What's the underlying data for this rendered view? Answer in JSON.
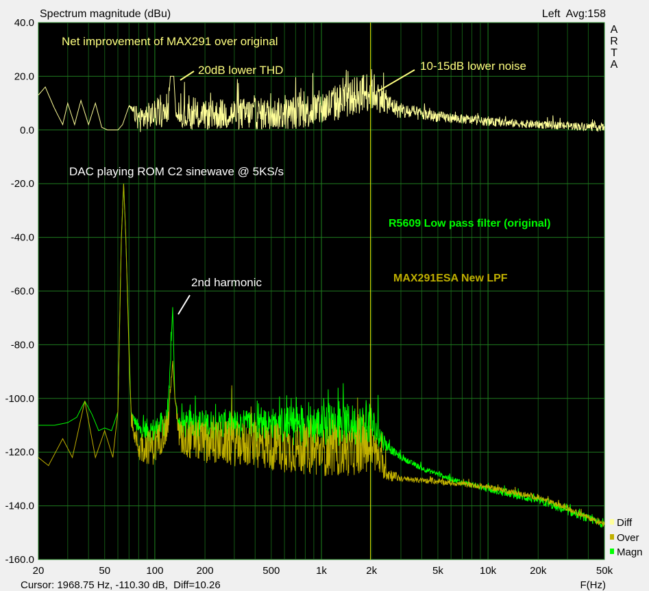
{
  "chart_data": {
    "type": "line",
    "title": "Spectrum magnitude (dBu)",
    "channel_info": "Left  Avg:158",
    "brand": [
      "A",
      "R",
      "T",
      "A"
    ],
    "xlabel": "F(Hz)",
    "xscale": "log",
    "xlim": [
      20,
      50000
    ],
    "ylim": [
      -160,
      40
    ],
    "grid": true,
    "x_ticks": [
      {
        "v": 20,
        "label": "20"
      },
      {
        "v": 50,
        "label": "50"
      },
      {
        "v": 100,
        "label": "100"
      },
      {
        "v": 200,
        "label": "200"
      },
      {
        "v": 500,
        "label": "500"
      },
      {
        "v": 1000,
        "label": "1k"
      },
      {
        "v": 2000,
        "label": "2k"
      },
      {
        "v": 5000,
        "label": "5k"
      },
      {
        "v": 10000,
        "label": "10k"
      },
      {
        "v": 20000,
        "label": "20k"
      },
      {
        "v": 50000,
        "label": "50k"
      }
    ],
    "y_ticks": [
      {
        "v": 40,
        "label": "40.0"
      },
      {
        "v": 20,
        "label": "20.0"
      },
      {
        "v": 0,
        "label": "0.0"
      },
      {
        "v": -20,
        "label": "-20.0"
      },
      {
        "v": -40,
        "label": "-40.0"
      },
      {
        "v": -60,
        "label": "-60.0"
      },
      {
        "v": -80,
        "label": "-80.0"
      },
      {
        "v": -100,
        "label": "-100.0"
      },
      {
        "v": -120,
        "label": "-120.0"
      },
      {
        "v": -140,
        "label": "-140.0"
      },
      {
        "v": -160,
        "label": "-160.0"
      }
    ],
    "cursor": {
      "freq": 1968.75,
      "text": "Cursor: 1968.75 Hz, -110.30 dB,  Diff=10.26",
      "color": "#e0e000"
    },
    "legend": [
      {
        "name": "Diff",
        "color": "#ffff99"
      },
      {
        "name": "Over",
        "color": "#c0b000"
      },
      {
        "name": "Magn",
        "color": "#00ff00"
      }
    ],
    "series": [
      {
        "name": "Magn",
        "color": "#00ff00",
        "points": [
          [
            20,
            -110,
            0
          ],
          [
            25,
            -110,
            0
          ],
          [
            30,
            -109,
            0
          ],
          [
            34,
            -107,
            0
          ],
          [
            38,
            -101,
            0
          ],
          [
            42,
            -106,
            0
          ],
          [
            46,
            -112,
            0
          ],
          [
            50,
            -111,
            0
          ],
          [
            55,
            -112,
            0
          ],
          [
            60,
            -105,
            0
          ],
          [
            63,
            -40,
            0
          ],
          [
            65,
            -20,
            0
          ],
          [
            67,
            -40,
            0
          ],
          [
            72,
            -105,
            0
          ],
          [
            80,
            -112,
            4
          ],
          [
            100,
            -112,
            5
          ],
          [
            120,
            -108,
            5
          ],
          [
            128,
            -66,
            0
          ],
          [
            132,
            -100,
            0
          ],
          [
            140,
            -110,
            5
          ],
          [
            200,
            -110,
            6
          ],
          [
            400,
            -110,
            6
          ],
          [
            800,
            -110,
            8
          ],
          [
            1500,
            -110,
            8
          ],
          [
            2000,
            -110,
            8
          ],
          [
            2500,
            -118,
            2
          ],
          [
            3000,
            -122,
            1
          ],
          [
            4000,
            -126,
            1
          ],
          [
            6000,
            -130,
            1
          ],
          [
            10000,
            -134,
            1
          ],
          [
            20000,
            -138,
            1.5
          ],
          [
            30000,
            -142,
            1.5
          ],
          [
            50000,
            -147,
            1.5
          ]
        ]
      },
      {
        "name": "Over",
        "color": "#c0b000",
        "points": [
          [
            20,
            -122,
            0
          ],
          [
            23,
            -125,
            0
          ],
          [
            28,
            -115,
            0
          ],
          [
            32,
            -122,
            0
          ],
          [
            38,
            -101,
            0
          ],
          [
            44,
            -122,
            0
          ],
          [
            50,
            -112,
            0
          ],
          [
            56,
            -122,
            0
          ],
          [
            60,
            -105,
            0
          ],
          [
            63,
            -40,
            0
          ],
          [
            65,
            -20,
            0
          ],
          [
            67,
            -40,
            0
          ],
          [
            72,
            -110,
            0
          ],
          [
            80,
            -118,
            6
          ],
          [
            100,
            -118,
            7
          ],
          [
            120,
            -110,
            6
          ],
          [
            128,
            -86,
            0
          ],
          [
            132,
            -100,
            0
          ],
          [
            140,
            -115,
            7
          ],
          [
            200,
            -116,
            8
          ],
          [
            500,
            -118,
            9
          ],
          [
            1000,
            -120,
            9
          ],
          [
            1500,
            -120,
            9
          ],
          [
            2000,
            -118,
            9
          ],
          [
            2500,
            -128,
            3
          ],
          [
            3000,
            -130,
            1
          ],
          [
            5000,
            -131,
            1
          ],
          [
            10000,
            -133,
            1
          ],
          [
            20000,
            -137,
            1
          ],
          [
            30000,
            -141,
            1
          ],
          [
            50000,
            -147,
            1
          ]
        ]
      },
      {
        "name": "Diff",
        "color": "#ffff99",
        "points": [
          [
            20,
            13,
            0
          ],
          [
            22,
            16,
            0
          ],
          [
            25,
            8,
            0
          ],
          [
            28,
            2,
            0
          ],
          [
            30,
            10,
            0
          ],
          [
            33,
            2,
            0
          ],
          [
            36,
            11,
            0
          ],
          [
            40,
            2,
            0
          ],
          [
            44,
            10,
            0
          ],
          [
            48,
            1,
            0
          ],
          [
            52,
            0,
            0
          ],
          [
            60,
            0,
            0
          ],
          [
            64,
            2,
            0
          ],
          [
            70,
            9,
            0
          ],
          [
            80,
            4,
            5
          ],
          [
            100,
            6,
            5
          ],
          [
            120,
            6,
            5
          ],
          [
            124,
            20,
            0
          ],
          [
            130,
            20,
            0
          ],
          [
            134,
            5,
            0
          ],
          [
            150,
            5,
            5
          ],
          [
            300,
            6,
            6
          ],
          [
            600,
            6,
            6
          ],
          [
            1000,
            8,
            7
          ],
          [
            1500,
            12,
            7
          ],
          [
            2000,
            15,
            8
          ],
          [
            2500,
            10,
            4
          ],
          [
            3000,
            7,
            3
          ],
          [
            5000,
            5,
            2
          ],
          [
            10000,
            3,
            1.5
          ],
          [
            20000,
            2,
            1.5
          ],
          [
            50000,
            1,
            1.5
          ]
        ]
      }
    ],
    "annotations": [
      {
        "text": "Net improvement of MAX291 over original",
        "color": "#ffff80"
      },
      {
        "text": "20dB lower THD",
        "color": "#ffff80"
      },
      {
        "text": "10-15dB lower noise",
        "color": "#ffff80"
      },
      {
        "text": "DAC playing ROM C2 sinewave @ 5KS/s",
        "color": "#ffffff"
      },
      {
        "text": "R5609 Low pass filter (original)",
        "color": "#00ff00"
      },
      {
        "text": "2nd harmonic",
        "color": "#ffffff"
      },
      {
        "text": "MAX291ESA New LPF",
        "color": "#c0b000"
      }
    ]
  }
}
